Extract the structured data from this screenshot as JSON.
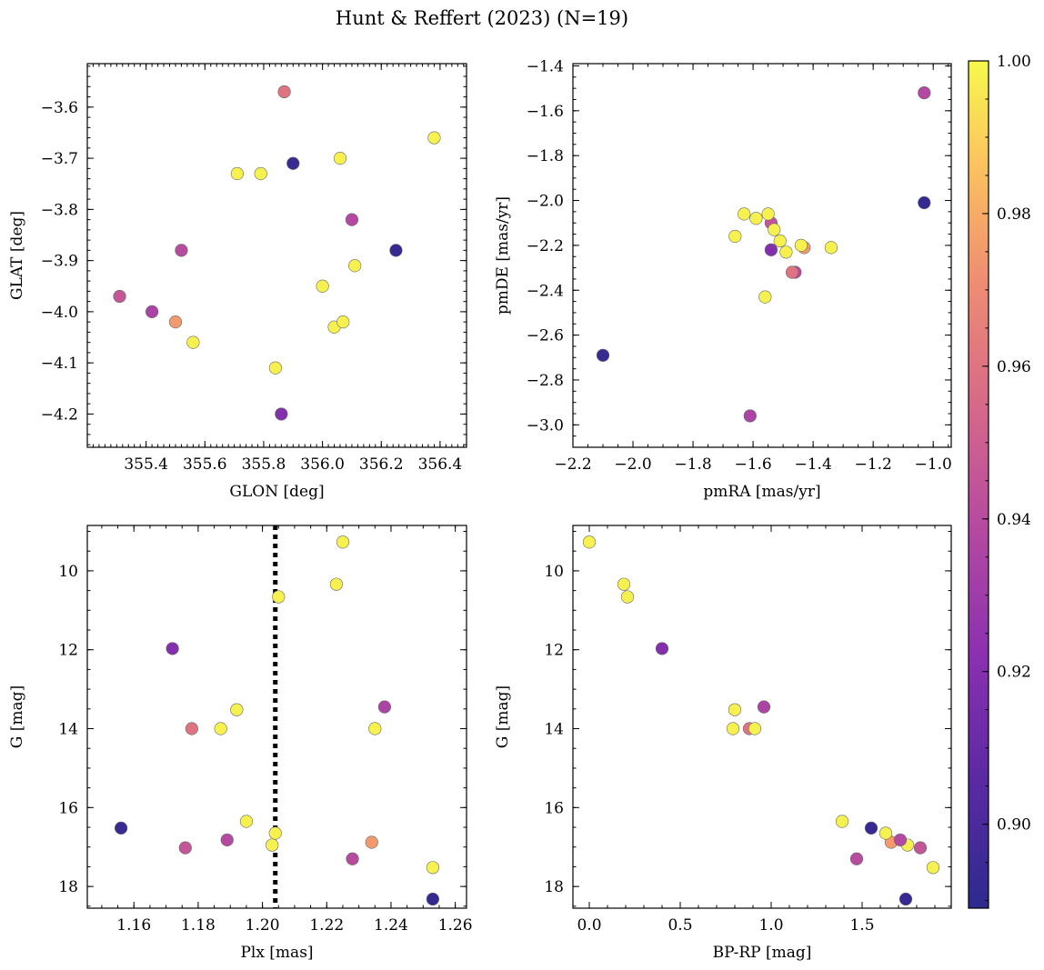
{
  "chart_data": {
    "title": "Hunt & Reffert (2023) (N=19)",
    "type": "scatter",
    "colormap": "plasma",
    "colorbar": {
      "vmin": 0.889,
      "vmax": 1.0,
      "ticks": [
        0.9,
        0.92,
        0.94,
        0.96,
        0.98,
        1.0
      ],
      "tick_labels": [
        "0.90",
        "0.92",
        "0.94",
        "0.96",
        "0.98",
        "1.00"
      ]
    },
    "stars": [
      {
        "glon": 355.31,
        "glat": -3.97,
        "pmra": -1.54,
        "pmde": -2.1,
        "plx": 1.176,
        "g": 17.02,
        "bprp": 1.82,
        "prob": 0.945
      },
      {
        "glon": 355.42,
        "glat": -4.0,
        "pmra": -1.61,
        "pmde": -2.96,
        "plx": 1.238,
        "g": 13.45,
        "bprp": 0.96,
        "prob": 0.935
      },
      {
        "glon": 355.5,
        "glat": -4.02,
        "pmra": -1.43,
        "pmde": -2.21,
        "plx": 1.234,
        "g": 16.88,
        "bprp": 1.66,
        "prob": 0.975
      },
      {
        "glon": 355.52,
        "glat": -3.88,
        "pmra": -1.46,
        "pmde": -2.32,
        "plx": 1.228,
        "g": 17.3,
        "bprp": 1.47,
        "prob": 0.94
      },
      {
        "glon": 355.56,
        "glat": -4.06,
        "pmra": -1.51,
        "pmde": -2.18,
        "plx": 1.187,
        "g": 14.0,
        "bprp": 0.79,
        "prob": 0.998
      },
      {
        "glon": 355.71,
        "glat": -3.73,
        "pmra": -1.55,
        "pmde": -2.06,
        "plx": 1.192,
        "g": 13.52,
        "bprp": 0.8,
        "prob": 0.998
      },
      {
        "glon": 355.79,
        "glat": -3.73,
        "pmra": -1.53,
        "pmde": -2.13,
        "plx": 1.195,
        "g": 16.35,
        "bprp": 1.39,
        "prob": 0.998
      },
      {
        "glon": 355.84,
        "glat": -4.11,
        "pmra": -1.56,
        "pmde": -2.43,
        "plx": 1.203,
        "g": 16.95,
        "bprp": 1.75,
        "prob": 0.998
      },
      {
        "glon": 355.87,
        "glat": -3.57,
        "pmra": -1.47,
        "pmde": -2.32,
        "plx": 1.178,
        "g": 14.0,
        "bprp": 0.88,
        "prob": 0.96
      },
      {
        "glon": 355.86,
        "glat": -4.2,
        "pmra": -1.54,
        "pmde": -2.22,
        "plx": 1.172,
        "g": 11.97,
        "bprp": 0.4,
        "prob": 0.92
      },
      {
        "glon": 355.9,
        "glat": -3.71,
        "pmra": -2.1,
        "pmde": -2.69,
        "plx": 1.156,
        "g": 16.52,
        "bprp": 1.55,
        "prob": 0.893
      },
      {
        "glon": 356.0,
        "glat": -3.95,
        "pmra": -1.49,
        "pmde": -2.23,
        "plx": 1.205,
        "g": 10.66,
        "bprp": 0.21,
        "prob": 0.998
      },
      {
        "glon": 356.04,
        "glat": -4.03,
        "pmra": -1.44,
        "pmde": -2.2,
        "plx": 1.204,
        "g": 16.65,
        "bprp": 1.63,
        "prob": 0.998
      },
      {
        "glon": 356.06,
        "glat": -3.7,
        "pmra": -1.34,
        "pmde": -2.21,
        "plx": 1.223,
        "g": 10.34,
        "bprp": 0.19,
        "prob": 0.998
      },
      {
        "glon": 356.07,
        "glat": -4.02,
        "pmra": -1.63,
        "pmde": -2.06,
        "plx": 1.235,
        "g": 14.0,
        "bprp": 0.91,
        "prob": 0.998
      },
      {
        "glon": 356.1,
        "glat": -3.82,
        "pmra": -1.03,
        "pmde": -1.52,
        "plx": 1.189,
        "g": 16.82,
        "bprp": 1.71,
        "prob": 0.938
      },
      {
        "glon": 356.11,
        "glat": -3.91,
        "pmra": -1.59,
        "pmde": -2.08,
        "plx": 1.225,
        "g": 9.27,
        "bprp": 0.0,
        "prob": 0.998
      },
      {
        "glon": 356.25,
        "glat": -3.88,
        "pmra": -1.03,
        "pmde": -2.01,
        "plx": 1.253,
        "g": 18.32,
        "bprp": 1.74,
        "prob": 0.892
      },
      {
        "glon": 356.38,
        "glat": -3.66,
        "pmra": -1.66,
        "pmde": -2.16,
        "plx": 1.253,
        "g": 17.52,
        "bprp": 1.89,
        "prob": 0.998
      }
    ],
    "panels": [
      {
        "id": "glon-glat",
        "xkey": "glon",
        "ykey": "glat",
        "xlabel": "GLON [deg]",
        "ylabel": "GLAT [deg]",
        "xlim": [
          355.2,
          356.49
        ],
        "ylim": [
          -4.265,
          -3.515
        ],
        "yinvert": false,
        "xticks": [
          355.4,
          355.6,
          355.8,
          356.0,
          356.2,
          356.4
        ],
        "xtick_labels": [
          "355.4",
          "355.6",
          "355.8",
          "356.0",
          "356.2",
          "356.4"
        ],
        "yticks": [
          -4.2,
          -4.1,
          -4.0,
          -3.9,
          -3.8,
          -3.7,
          -3.6
        ],
        "ytick_labels": [
          "−4.2",
          "−4.1",
          "−4.0",
          "−3.9",
          "−3.8",
          "−3.7",
          "−3.6"
        ],
        "xminor": 0.02,
        "yminor": 0.02
      },
      {
        "id": "pmra-pmde",
        "xkey": "pmra",
        "ykey": "pmde",
        "xlabel": "pmRA [mas/yr]",
        "ylabel": "pmDE [mas/yr]",
        "xlim": [
          -2.2,
          -0.94
        ],
        "ylim": [
          -3.1,
          -1.39
        ],
        "yinvert": false,
        "xticks": [
          -2.2,
          -2.0,
          -1.8,
          -1.6,
          -1.4,
          -1.2,
          -1.0
        ],
        "xtick_labels": [
          "−2.2",
          "−2.0",
          "−1.8",
          "−1.6",
          "−1.4",
          "−1.2",
          "−1.0"
        ],
        "yticks": [
          -3.0,
          -2.8,
          -2.6,
          -2.4,
          -2.2,
          -2.0,
          -1.8,
          -1.6,
          -1.4
        ],
        "ytick_labels": [
          "−3.0",
          "−2.8",
          "−2.6",
          "−2.4",
          "−2.2",
          "−2.0",
          "−1.8",
          "−1.6",
          "−1.4"
        ],
        "xminor": 0.05,
        "yminor": 0.05
      },
      {
        "id": "plx-g",
        "xkey": "plx",
        "ykey": "g",
        "xlabel": "Plx [mas]",
        "ylabel": "G [mag]",
        "xlim": [
          1.1455,
          1.2635
        ],
        "ylim": [
          8.85,
          18.55
        ],
        "yinvert": true,
        "xticks": [
          1.16,
          1.18,
          1.2,
          1.22,
          1.24,
          1.26
        ],
        "xtick_labels": [
          "1.16",
          "1.18",
          "1.20",
          "1.22",
          "1.24",
          "1.26"
        ],
        "yticks": [
          10,
          12,
          14,
          16,
          18
        ],
        "ytick_labels": [
          "10",
          "12",
          "14",
          "16",
          "18"
        ],
        "xminor": 0.005,
        "yminor": 0.5,
        "vline": 1.204
      },
      {
        "id": "bprp-g",
        "xkey": "bprp",
        "ykey": "g",
        "xlabel": "BP-RP [mag]",
        "ylabel": "G [mag]",
        "xlim": [
          -0.09,
          1.99
        ],
        "ylim": [
          8.85,
          18.55
        ],
        "yinvert": true,
        "xticks": [
          0.0,
          0.5,
          1.0,
          1.5
        ],
        "xtick_labels": [
          "0.0",
          "0.5",
          "1.0",
          "1.5"
        ],
        "yticks": [
          10,
          12,
          14,
          16,
          18
        ],
        "ytick_labels": [
          "10",
          "12",
          "14",
          "16",
          "18"
        ],
        "xminor": 0.1,
        "yminor": 0.5
      }
    ]
  }
}
